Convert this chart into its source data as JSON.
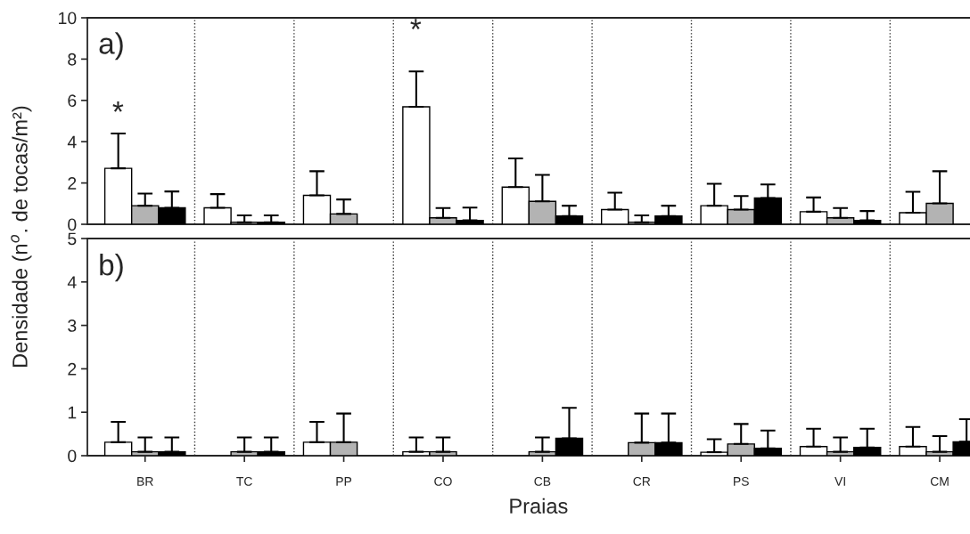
{
  "chart_data": [
    {
      "type": "bar",
      "ylabel": "Densidade (n$^{o}$. de tocas/m²)",
      "categories": [
        null,
        null,
        null,
        null,
        null,
        null,
        null,
        null,
        null
      ],
      "ylim": [
        0,
        10
      ],
      "yticks": [
        0,
        2,
        4,
        6,
        8,
        10
      ],
      "tick_labels": "y",
      "series": [
        {
          "color": "#ffffff",
          "values": [
            2.71,
            0.8,
            1.4,
            5.69,
            1.8,
            0.71,
            0.9,
            0.61,
            0.56
          ],
          "errors": [
            [
              2.71,
              4.4
            ],
            [
              0.8,
              1.46
            ],
            [
              1.4,
              2.57
            ],
            [
              5.69,
              7.4
            ],
            [
              1.8,
              3.19
            ],
            [
              0.71,
              1.53
            ],
            [
              0.9,
              1.96
            ],
            [
              0.61,
              1.3
            ],
            [
              0.56,
              1.57
            ]
          ]
        },
        {
          "color": "#b3b3b3",
          "values": [
            0.9,
            0.1,
            0.5,
            0.31,
            1.11,
            0.1,
            0.71,
            0.31,
            1.01
          ],
          "errors": [
            [
              0.9,
              1.49
            ],
            [
              0.1,
              0.43
            ],
            [
              0.5,
              1.2
            ],
            [
              0.31,
              0.79
            ],
            [
              1.11,
              2.39
            ],
            [
              0.1,
              0.43
            ],
            [
              0.71,
              1.37
            ],
            [
              0.31,
              0.79
            ],
            [
              1.01,
              2.57
            ]
          ]
        },
        {
          "color": "#000000",
          "values": [
            0.8,
            0.1,
            null,
            0.19,
            0.4,
            0.4,
            1.27,
            0.19,
            null
          ],
          "errors": [
            [
              0.8,
              1.59
            ],
            [
              0.1,
              0.43
            ],
            null,
            [
              0.19,
              0.81
            ],
            [
              0.4,
              0.9
            ],
            [
              0.4,
              0.9
            ],
            [
              1.27,
              1.93
            ],
            [
              0.19,
              0.64
            ],
            null
          ]
        }
      ],
      "annotations": [
        "a)",
        "*",
        "*"
      ]
    },
    {
      "type": "bar",
      "xlabel": "Praias",
      "categories": [
        "BR",
        "TC",
        "PP",
        "CO",
        "CB",
        "CR",
        "PS",
        "VI",
        "CM"
      ],
      "ylim": [
        0,
        5
      ],
      "yticks": [
        0,
        1,
        2,
        3,
        4,
        5
      ],
      "series": [
        {
          "color": "#ffffff",
          "values": [
            0.31,
            null,
            0.31,
            0.09,
            null,
            null,
            0.08,
            0.21,
            0.21
          ],
          "errors": [
            [
              0.31,
              0.78
            ],
            null,
            [
              0.31,
              0.78
            ],
            [
              0.09,
              0.42
            ],
            null,
            null,
            [
              0.08,
              0.38
            ],
            [
              0.21,
              0.62
            ],
            [
              0.21,
              0.66
            ]
          ]
        },
        {
          "color": "#b3b3b3",
          "values": [
            0.09,
            0.09,
            0.31,
            0.09,
            0.09,
            0.3,
            0.27,
            0.09,
            0.09
          ],
          "errors": [
            [
              0.09,
              0.42
            ],
            [
              0.09,
              0.42
            ],
            [
              0.31,
              0.97
            ],
            [
              0.09,
              0.42
            ],
            [
              0.09,
              0.42
            ],
            [
              0.3,
              0.97
            ],
            [
              0.27,
              0.73
            ],
            [
              0.09,
              0.42
            ],
            [
              0.09,
              0.45
            ]
          ]
        },
        {
          "color": "#000000",
          "values": [
            0.09,
            0.09,
            null,
            null,
            0.4,
            0.3,
            0.17,
            0.19,
            0.32
          ],
          "errors": [
            [
              0.09,
              0.42
            ],
            [
              0.09,
              0.42
            ],
            null,
            null,
            [
              0.4,
              1.1
            ],
            [
              0.3,
              0.97
            ],
            [
              0.17,
              0.58
            ],
            [
              0.19,
              0.62
            ],
            [
              0.32,
              0.84
            ]
          ]
        }
      ],
      "annotations": [
        "b)"
      ]
    }
  ]
}
